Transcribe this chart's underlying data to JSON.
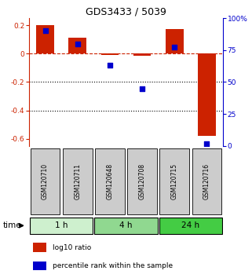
{
  "title": "GDS3433 / 5039",
  "samples": [
    "GSM120710",
    "GSM120711",
    "GSM120648",
    "GSM120708",
    "GSM120715",
    "GSM120716"
  ],
  "log10_ratio": [
    0.2,
    0.11,
    -0.01,
    -0.015,
    0.17,
    -0.58
  ],
  "percentile_rank": [
    90,
    80,
    63,
    45,
    77,
    2
  ],
  "groups": [
    {
      "label": "1 h",
      "start": 0,
      "end": 2,
      "color": "#cef0ce"
    },
    {
      "label": "4 h",
      "start": 2,
      "end": 4,
      "color": "#90d890"
    },
    {
      "label": "24 h",
      "start": 4,
      "end": 6,
      "color": "#44cc44"
    }
  ],
  "ylim_left": [
    -0.65,
    0.25
  ],
  "ylim_right": [
    0,
    100
  ],
  "yticks_left": [
    0.2,
    0.0,
    -0.2,
    -0.4,
    -0.6
  ],
  "yticks_right": [
    100,
    75,
    50,
    25,
    0
  ],
  "bar_color": "#cc2200",
  "dot_color": "#0000cc",
  "dashed_color": "#cc2200",
  "sample_box_color": "#cccccc",
  "bar_width": 0.55,
  "dot_size": 25,
  "time_label": "time"
}
